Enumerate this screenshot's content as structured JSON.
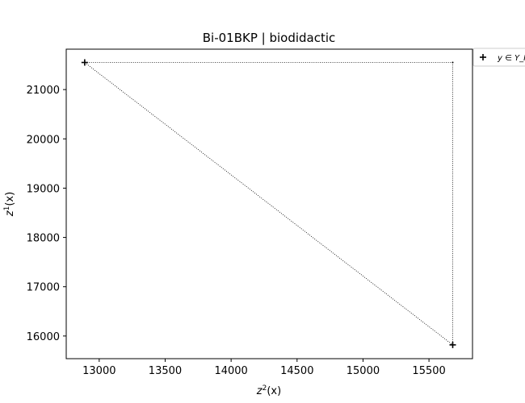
{
  "chart_data": {
    "type": "scatter",
    "title": "Bi-01BKP | biodidactic",
    "xlabel_base": "z",
    "xlabel_sup": "2",
    "xlabel_suffix": "(x)",
    "ylabel_base": "z",
    "ylabel_sup": "1",
    "ylabel_suffix": "(x)",
    "xlim": [
      12750,
      15830
    ],
    "ylim": [
      15540,
      21820
    ],
    "xticks": [
      13000,
      13500,
      14000,
      14500,
      15000,
      15500
    ],
    "yticks": [
      16000,
      17000,
      18000,
      19000,
      20000,
      21000
    ],
    "series": [
      {
        "name": "y ∈ Y_N",
        "marker": "plus",
        "points": [
          {
            "x": 12890,
            "y": 21550
          },
          {
            "x": 15680,
            "y": 15820
          }
        ]
      }
    ],
    "envelope": {
      "style": "dotted",
      "corner": {
        "x": 15680,
        "y": 21550
      }
    },
    "legend": {
      "placement": "outside-top-right",
      "label": "y ∈ Y_N"
    },
    "grid": false
  }
}
